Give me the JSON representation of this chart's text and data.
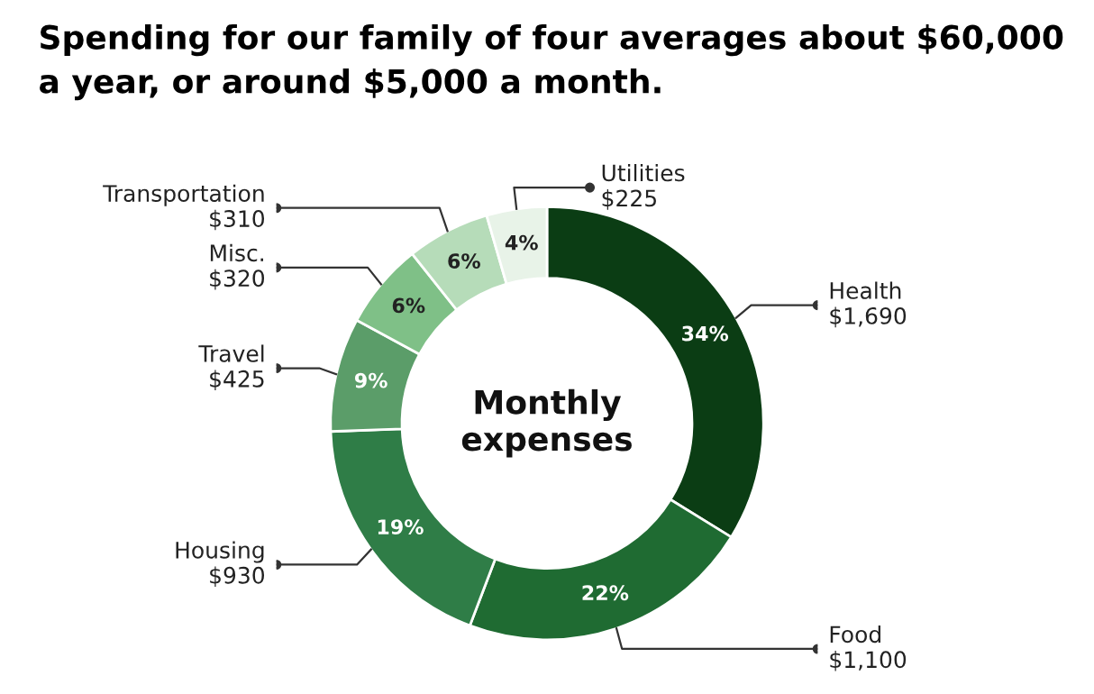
{
  "chart_data": {
    "type": "donut",
    "title": "Spending for our family of four averages about $60,000\na year, or around $5,000 a month.",
    "categories": [
      "Health",
      "Food",
      "Housing",
      "Travel",
      "Misc.",
      "Transportation",
      "Utilities"
    ],
    "values": [
      1690,
      1100,
      930,
      425,
      320,
      310,
      225
    ],
    "value_labels": [
      "$1,690",
      "$1,100",
      "$930",
      "$425",
      "$320",
      "$310",
      "$225"
    ],
    "colors": [
      "#0b3d14",
      "#1f6b32",
      "#2f7d47",
      "#5b9d69",
      "#7fc087",
      "#b6dcb9",
      "#e8f3e8"
    ],
    "annotations": [
      "Monthly\nexpenses",
      {
        "text": "34%",
        "x": "Health"
      },
      {
        "text": "22%",
        "x": "Food"
      },
      {
        "text": "19%",
        "x": "Housing"
      },
      {
        "text": "9%",
        "x": "Travel"
      },
      {
        "text": "6%",
        "x": "Misc."
      },
      {
        "text": "6%",
        "x": "Transportation"
      },
      {
        "text": "4%",
        "x": "Utilities"
      }
    ],
    "legend": false
  }
}
